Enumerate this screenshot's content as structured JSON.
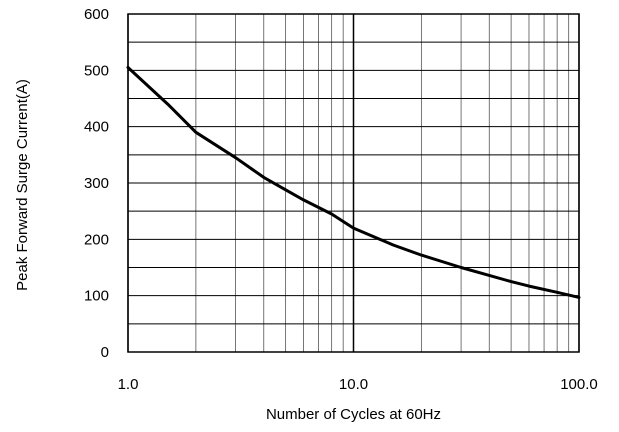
{
  "chart_data": {
    "type": "line",
    "title": "",
    "xlabel": "Number of Cycles at 60Hz",
    "ylabel": "Peak Forward Surge Current(A)",
    "x_scale": "log",
    "xlim": [
      1,
      100
    ],
    "ylim": [
      0,
      600
    ],
    "grid": true,
    "x_tick_labels": [
      {
        "value": 1,
        "label": "1.0"
      },
      {
        "value": 10,
        "label": "10.0"
      },
      {
        "value": 100,
        "label": "100.0"
      }
    ],
    "y_ticks": [
      0,
      100,
      200,
      300,
      400,
      500,
      600
    ],
    "y_tick_labels": [
      "0",
      "100",
      "200",
      "300",
      "400",
      "500",
      "600"
    ],
    "series": [
      {
        "x": [
          1,
          1.5,
          2,
          3,
          4,
          5,
          6,
          8,
          10,
          15,
          20,
          30,
          40,
          50,
          60,
          80,
          100
        ],
        "y": [
          505,
          440,
          390,
          345,
          310,
          288,
          270,
          245,
          220,
          190,
          172,
          150,
          136,
          125,
          117,
          106,
          97
        ]
      }
    ]
  }
}
